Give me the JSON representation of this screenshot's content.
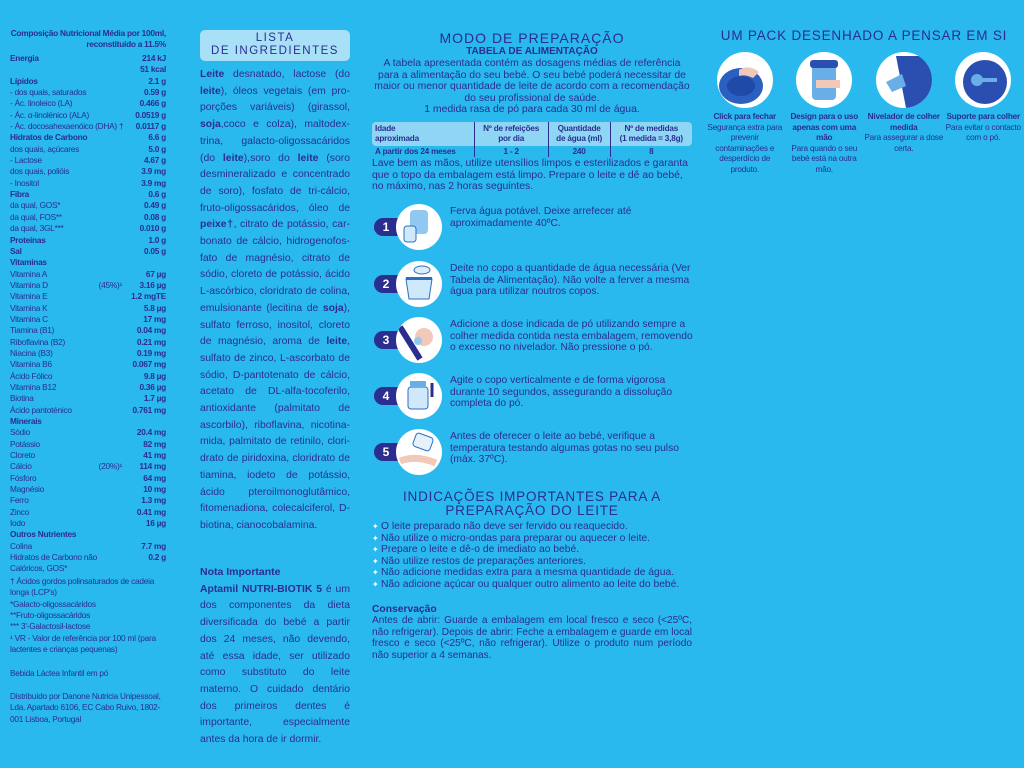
{
  "nutrition": {
    "header": [
      "Composição Nutricional Média por 100ml,",
      "reconstituído a 11.5%"
    ],
    "rows": [
      {
        "l": "Energia",
        "v": "214 kJ",
        "b": true
      },
      {
        "l": "",
        "v": "51 kcal"
      },
      {
        "l": "Lípidos",
        "v": "2.1 g",
        "b": true
      },
      {
        "l": "- dos quais, saturados",
        "v": "0.59 g"
      },
      {
        "l": "- Ác. linoleico (LA)",
        "v": "0.466 g"
      },
      {
        "l": "- Ác. α-linolénico (ALA)",
        "v": "0.0519 g"
      },
      {
        "l": "- Ác. docosahexaenóico (DHA) †",
        "v": "0.0117 g"
      },
      {
        "l": "Hidratos de Carbono",
        "v": "6.6 g",
        "b": true
      },
      {
        "l": "dos quais, açúcares",
        "v": "5.0 g"
      },
      {
        "l": "- Lactose",
        "v": "4.67 g"
      },
      {
        "l": "dos quais, polióis",
        "v": "3.9 mg"
      },
      {
        "l": "- Inositol",
        "v": "3.9 mg"
      },
      {
        "l": "Fibra",
        "v": "0.6 g",
        "b": true
      },
      {
        "l": "da qual, GOS*",
        "v": "0.49 g"
      },
      {
        "l": "da qual, FOS**",
        "v": "0.08 g"
      },
      {
        "l": "da qual, 3GL***",
        "v": "0.010 g"
      },
      {
        "l": "Proteínas",
        "v": "1.0 g",
        "b": true
      },
      {
        "l": "Sal",
        "v": "0.05 g",
        "b": true
      },
      {
        "l": "Vitaminas",
        "v": "",
        "b": true
      },
      {
        "l": "Vitamina A",
        "v": "67 µg"
      },
      {
        "l": "Vitamina D",
        "n": "(45%)¹",
        "v": "3.16 µg"
      },
      {
        "l": "Vitamina E",
        "v": "1.2 mgTE"
      },
      {
        "l": "Vitamina K",
        "v": "5.8 µg"
      },
      {
        "l": "Vitamina C",
        "v": "17 mg"
      },
      {
        "l": "Tiamina (B1)",
        "v": "0.04 mg"
      },
      {
        "l": "Riboflavina (B2)",
        "v": "0.21 mg"
      },
      {
        "l": "Niacina (B3)",
        "v": "0.19 mg"
      },
      {
        "l": "Vitamina B6",
        "v": "0.067 mg"
      },
      {
        "l": "Ácido Fólico",
        "v": "9.8 µg"
      },
      {
        "l": "Vitamina B12",
        "v": "0.36 µg"
      },
      {
        "l": "Biotina",
        "v": "1.7 µg"
      },
      {
        "l": "Ácido pantoténico",
        "v": "0.761 mg"
      },
      {
        "l": "Minerais",
        "v": "",
        "b": true
      },
      {
        "l": "Sódio",
        "v": "20.4 mg"
      },
      {
        "l": "Potássio",
        "v": "82 mg"
      },
      {
        "l": "Cloreto",
        "v": "41 mg"
      },
      {
        "l": "Cálcio",
        "n": "(20%)¹",
        "v": "114 mg"
      },
      {
        "l": "Fósforo",
        "v": "64 mg"
      },
      {
        "l": "Magnésio",
        "v": "10 mg"
      },
      {
        "l": "Ferro",
        "v": "1.3 mg"
      },
      {
        "l": "Zinco",
        "v": "0.41 mg"
      },
      {
        "l": "Iodo",
        "v": "16 µg"
      },
      {
        "l": "Outros Nutrientes",
        "v": "",
        "b": true
      },
      {
        "l": "Colina",
        "v": "7.7 mg"
      },
      {
        "l": "Hidratos de Carbono não Calóricos, GOS*",
        "v": "0.2 g"
      }
    ],
    "footnotes": [
      "† Ácidos gordos polinsaturados de cadeia longa (LCP's)",
      "*Galacto-oligossacáridos",
      "**Fruto-oligossacáridos",
      "*** 3'-Galactosil-lactose",
      "¹ VR - Valor de referência por 100 ml (para lactentes e crianças pequenas)"
    ],
    "product_type": "Bebida Láctea Infantil em pó",
    "distributor": "Distribuído por Danone Nutricia Unipessoal, Lda. Apartado 6106, EC Cabo Ruivo, 1802-001 Lisboa, Portugal"
  },
  "ingredients": {
    "title_line1": "LISTA",
    "title_line2": "DE INGREDIENTES",
    "segments": [
      {
        "t": "Leite",
        "b": true
      },
      {
        "t": " desnatado, lactose (do "
      },
      {
        "t": "leite",
        "b": true
      },
      {
        "t": "), óleos vegetais (em pro­porções variáveis) (girassol, "
      },
      {
        "t": "soja",
        "b": true
      },
      {
        "t": ",coco e colza), maltodex­trina, galacto-oligossacáridos (do "
      },
      {
        "t": "leite",
        "b": true
      },
      {
        "t": "),soro do "
      },
      {
        "t": "leite",
        "b": true
      },
      {
        "t": " (soro desmineralizado e concentrado de soro), fosfato de tri-cálcio, fruto-oligossacáridos, óleo de "
      },
      {
        "t": "peixe†",
        "b": true
      },
      {
        "t": ", citrato de potássio, car­bonato de cálcio, hidrogenofos­fato de magnésio, citrato de sódio, cloreto de potássio, ácido L-ascórbico, cloridrato de colina, emulsionante (lecitina de "
      },
      {
        "t": "soja",
        "b": true
      },
      {
        "t": "), sulfato ferroso, inositol, cloreto de magnésio, aroma de "
      },
      {
        "t": "leite",
        "b": true
      },
      {
        "t": ", sulfato de zinco, L-ascorbato de sódio, D-pantotenato de cálcio, acetato de DL-alfa-tocoferilo, antioxidante (palmitato de ascorbilo), riboflavina, nicotina­mida, palmitato de retinilo, clori­drato de piridoxina, cloridrato de tiamina, iodeto de potássio, ácido pteroilmonoglutâmico, fitomenadiona, colecalciferol, D-biotina, cianocobalamina."
      }
    ],
    "note_title": "Nota Importante",
    "note_brand": "Aptamil NUTRI-BIOTIK 5",
    "note_text": " é um dos componentes da dieta diversificada do bebé a partir dos 24 meses, não devendo, até essa idade, ser utili­zado como substituto do leite materno. O cuidado dentário dos primeiros dentes é importante, especialmente antes da hora de ir dormir."
  },
  "preparation": {
    "title": "MODO DE PREPARAÇÃO",
    "table_title": "TABELA DE ALIMENTAÇÃO",
    "intro": "A tabela apresentada contém as dosagens médias de referência para a alimentação do seu bebé. O seu bebé poderá necessitar de maior ou menor quantidade de leite de acordo com a recomendação do seu profissional de saúde.",
    "measure": "1 medida rasa de pó para cada 30 ml de água.",
    "table": {
      "headers": [
        [
          "Idade",
          "aproximada"
        ],
        [
          "Nº de refeições",
          "por dia"
        ],
        [
          "Quantidade",
          "de água (ml)"
        ],
        [
          "Nº de medidas",
          "(1 medida = 3,8g)"
        ]
      ],
      "rows": [
        [
          "A partir dos 24 meses",
          "1 - 2",
          "240",
          "8"
        ]
      ]
    },
    "wash": "Lave bem as mãos, utilize utensílios limpos e esterilizados e garanta que o topo da embalagem está limpo. Prepare o leite e dê ao bebé, no máximo, nas 2 horas seguintes.",
    "steps": [
      {
        "n": "1",
        "text": "Ferva água potável. Deixe arrefecer até aproximadamente 40ºC.",
        "icon": "kettle-icon"
      },
      {
        "n": "2",
        "text": "Deite no copo a quantidade de água necessária (Ver Tabela de Alimentação). Não volte a ferver a mesma água para utilizar noutros copos.",
        "icon": "pour-water-icon"
      },
      {
        "n": "3",
        "text": "Adicione a dose indicada de pó utilizando sempre a colher medida contida nesta embalagem, removendo o excesso no nivelador. Não pressione o pó.",
        "icon": "scoop-icon"
      },
      {
        "n": "4",
        "text": "Agite o copo verticalmente e de forma vigorosa durante 10 segundos, assegurando a dissolução completa do pó.",
        "icon": "shake-cup-icon"
      },
      {
        "n": "5",
        "text": "Antes de oferecer o leite ao bebé, verifique a temperatura testando algumas gotas no seu pulso (máx. 37ºC).",
        "icon": "wrist-test-icon"
      }
    ]
  },
  "indications": {
    "title": "INDICAÇÕES IMPORTANTES PARA A PREPARAÇÃO DO LEITE",
    "items": [
      "O leite preparado não deve ser fervido ou reaquecido.",
      "Não utilize o micro-ondas para preparar ou aquecer o leite.",
      "Prepare o leite e dê-o de imediato ao bebé.",
      "Não utilize restos de preparações anteriores.",
      "Não adicione medidas extra para a mesma quantidade de água.",
      "Não adicione açúcar ou qualquer outro alimento ao leite do bebé."
    ],
    "conservation_title": "Conservação",
    "conservation_text": "Antes de abrir: Guarde a embalagem em local fresco e seco (<25ºC, não refrigerar). Depois de abrir: Feche a embalagem e guarde em local fresco e seco (<25ºC, não refrigerar). Utilize o produto num período não superior a 4 semanas."
  },
  "pack": {
    "title": "UM PACK DESENHADO A PENSAR EM SI",
    "features": [
      {
        "title": "Click para fechar",
        "text": "Segurança extra para prevenir contaminações e desperdício de produto.",
        "icon": "click-lid-icon"
      },
      {
        "title": "Design para o uso apenas com uma mão",
        "text": "Para quando o seu bebé está na outra mão.",
        "icon": "one-hand-icon"
      },
      {
        "title": "Nivelador de colher medida",
        "text": "Para assegurar a dose certa.",
        "icon": "scoop-leveler-icon"
      },
      {
        "title": "Suporte para colher",
        "text": "Para evitar o contacto com o pó.",
        "icon": "scoop-holder-icon"
      }
    ]
  },
  "colors": {
    "background": "#29b9ee",
    "text": "#2b2d8f",
    "panel": "#a8e0f7",
    "table_header": "#8fd6f5"
  }
}
